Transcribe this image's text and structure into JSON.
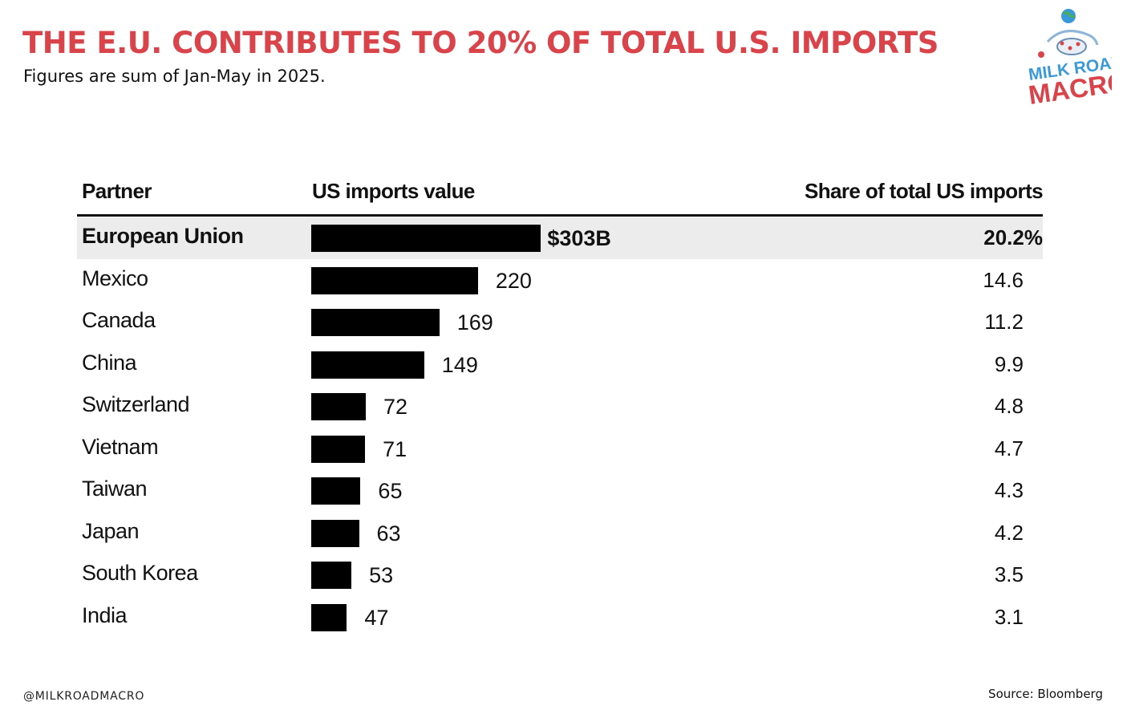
{
  "header": {
    "title": "THE E.U. CONTRIBUTES TO 20% OF TOTAL U.S. IMPORTS",
    "subtitle": "Figures are sum of Jan-May in 2025."
  },
  "logo": {
    "line1": "MILK ROAD",
    "line2": "MACRO",
    "icon": "globe-cow-rider-logo"
  },
  "footer": {
    "handle": "@MILKROADMACRO",
    "source": "Source: Bloomberg"
  },
  "chart_data": {
    "type": "bar",
    "orientation": "horizontal",
    "columns": [
      "Partner",
      "US imports value",
      "Share of total US imports"
    ],
    "categories": [
      "European Union",
      "Mexico",
      "Canada",
      "China",
      "Switzerland",
      "Vietnam",
      "Taiwan",
      "Japan",
      "South Korea",
      "India"
    ],
    "values": [
      303,
      220,
      169,
      149,
      72,
      71,
      65,
      63,
      53,
      47
    ],
    "value_labels": [
      "$303B",
      "220",
      "169",
      "149",
      "72",
      "71",
      "65",
      "63",
      "53",
      "47"
    ],
    "shares": [
      "20.2%",
      "14.6",
      "11.2",
      "9.9",
      "4.8",
      "4.7",
      "4.3",
      "4.2",
      "3.5",
      "3.1"
    ],
    "highlighted": "European Union",
    "bar_color": "#000000",
    "highlight_row_color": "#ececec"
  },
  "colors": {
    "title": "#d9434a",
    "logo_blue": "#3a9ad9",
    "logo_red": "#d9434a"
  }
}
